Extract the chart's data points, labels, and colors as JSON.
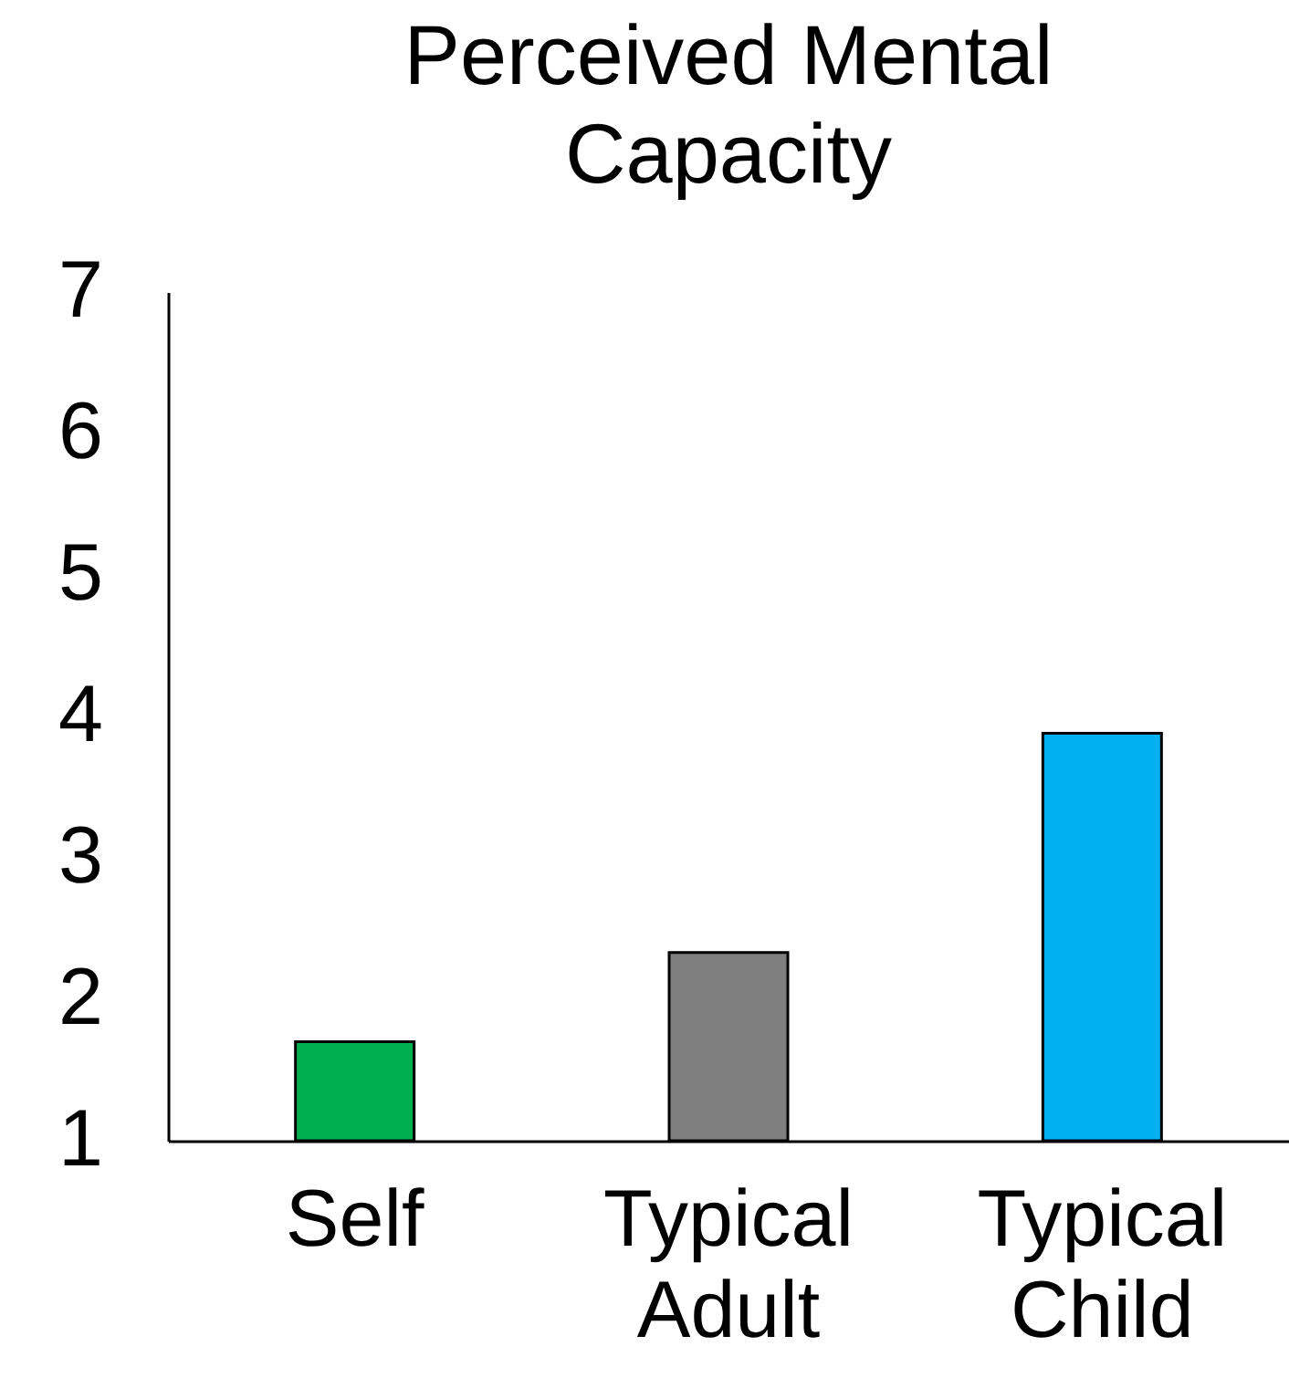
{
  "chart_data": {
    "type": "bar",
    "title": "Perceived Mental Capacity",
    "categories": [
      "Self",
      "Typical Adult",
      "Typical Child"
    ],
    "values": [
      1.7,
      2.33,
      3.88
    ],
    "colors": [
      "#00b050",
      "#7f7f7f",
      "#00b0f0"
    ],
    "ylim": [
      1,
      7
    ],
    "yticks": [
      1,
      2,
      3,
      4,
      5,
      6,
      7
    ],
    "grid": false,
    "legend": false
  }
}
